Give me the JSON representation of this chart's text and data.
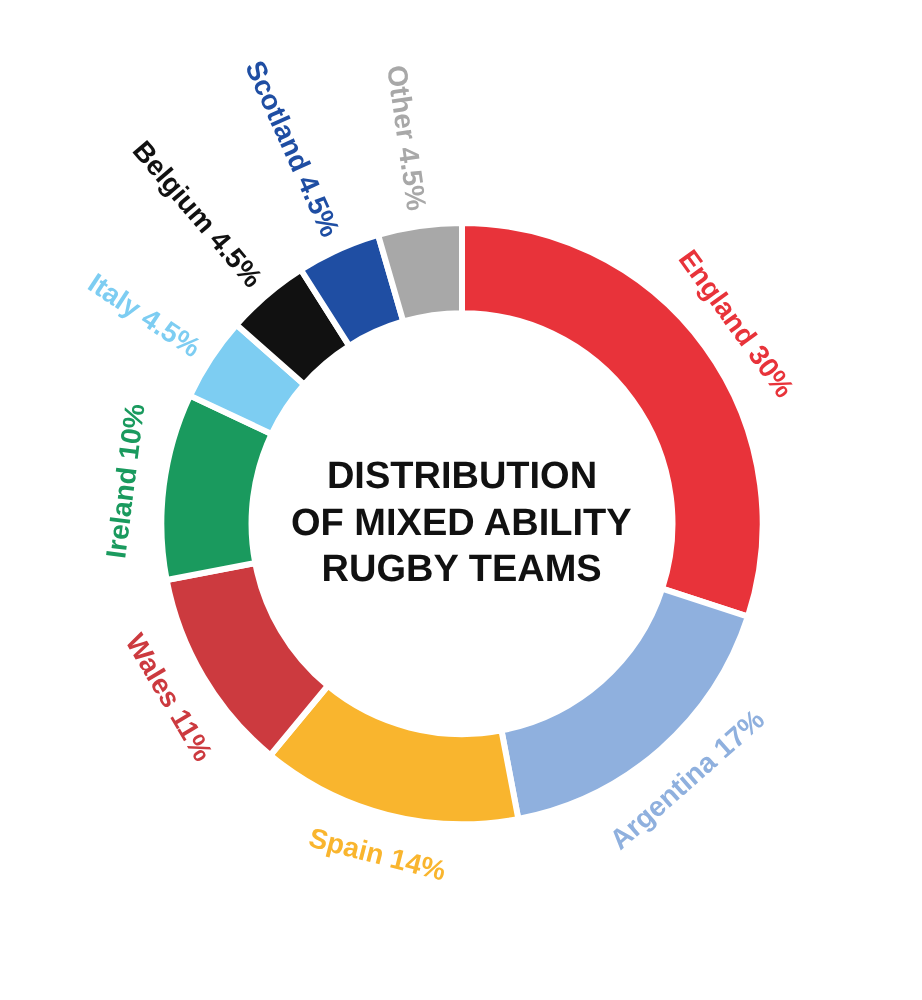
{
  "chart_data": {
    "type": "donut",
    "title": "DISTRIBUTION\nOF MIXED ABILITY\nRUGBY TEAMS",
    "categories": [
      "England",
      "Argentina",
      "Spain",
      "Wales",
      "Ireland",
      "Italy",
      "Belgium",
      "Scotland",
      "Other"
    ],
    "values": [
      30,
      17,
      14,
      11,
      10,
      4.5,
      4.5,
      4.5,
      4.5
    ],
    "value_labels": [
      "30%",
      "17%",
      "14%",
      "11%",
      "10%",
      "4.5%",
      "4.5%",
      "4.5%",
      "4.5%"
    ],
    "colors": [
      "#e8333a",
      "#8fb0de",
      "#f9b52e",
      "#cc3a3f",
      "#1a9a5e",
      "#7dcdf2",
      "#111111",
      "#1f4ea3",
      "#a8a8a8"
    ]
  }
}
